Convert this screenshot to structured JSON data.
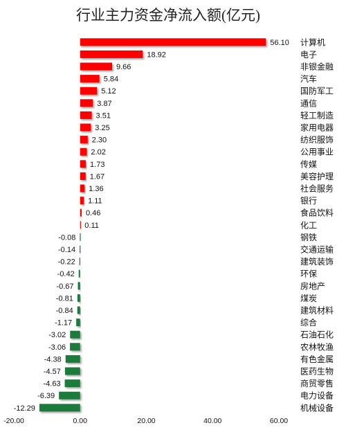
{
  "chart_data": {
    "type": "bar",
    "orientation": "horizontal",
    "title": "行业主力资金净流入额(亿元)",
    "categories": [
      "计算机",
      "电子",
      "非银金融",
      "汽车",
      "国防军工",
      "通信",
      "轻工制造",
      "家用电器",
      "纺织服饰",
      "公用事业",
      "传媒",
      "美容护理",
      "社会服务",
      "银行",
      "食品饮料",
      "化工",
      "钢铁",
      "交通运输",
      "建筑装饰",
      "环保",
      "房地产",
      "煤炭",
      "建筑材料",
      "综合",
      "石油石化",
      "农林牧渔",
      "有色金属",
      "医药生物",
      "商贸零售",
      "电力设备",
      "机械设备"
    ],
    "values": [
      56.1,
      18.92,
      9.66,
      5.84,
      5.12,
      3.87,
      3.51,
      3.25,
      2.3,
      2.02,
      1.73,
      1.67,
      1.36,
      1.11,
      0.46,
      0.11,
      -0.08,
      -0.14,
      -0.22,
      -0.42,
      -0.67,
      -0.81,
      -0.84,
      -1.17,
      -3.02,
      -3.06,
      -4.38,
      -4.57,
      -4.63,
      -6.39,
      -12.29
    ],
    "value_labels": [
      "56.10",
      "18.92",
      "9.66",
      "5.84",
      "5.12",
      "3.87",
      "3.51",
      "3.25",
      "2.30",
      "2.02",
      "1.73",
      "1.67",
      "1.36",
      "1.11",
      "0.46",
      "0.11",
      "-0.08",
      "-0.14",
      "-0.22",
      "-0.42",
      "-0.67",
      "-0.81",
      "-0.84",
      "-1.17",
      "-3.02",
      "-3.06",
      "-4.38",
      "-4.57",
      "-4.63",
      "-6.39",
      "-12.29"
    ],
    "xlim": [
      -20,
      60
    ],
    "xticks": [
      -20,
      0,
      20,
      40,
      60
    ],
    "xtick_labels": [
      "-20.00",
      "0.00",
      "20.00",
      "40.00",
      "60.00"
    ],
    "grid": false,
    "legend": "none",
    "colors": {
      "positive": "#ff0000",
      "negative": "#1a7a3a"
    }
  }
}
